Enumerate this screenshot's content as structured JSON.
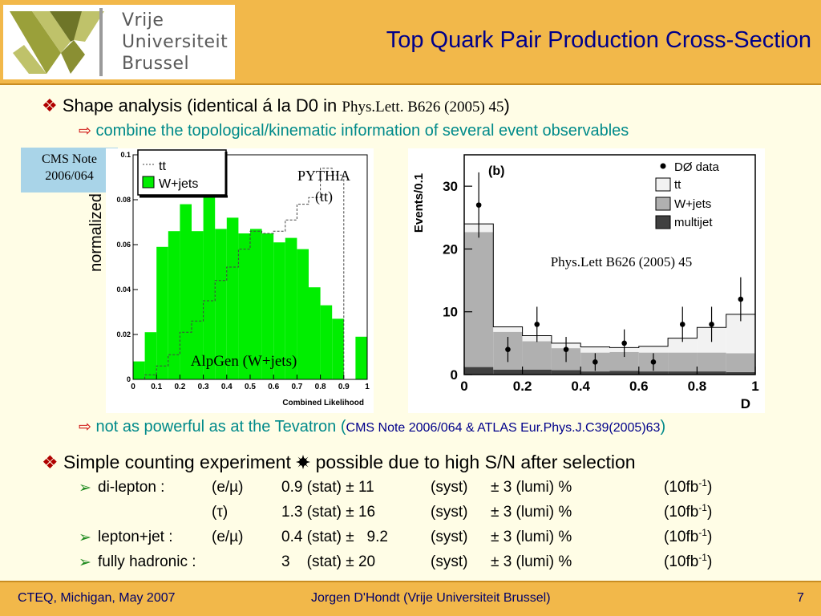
{
  "header": {
    "logo": {
      "line1": "Vrije",
      "line2": "Universiteit",
      "line3": "Brussel"
    },
    "title": "Top Quark Pair Production Cross-Section"
  },
  "bullets": {
    "shape": {
      "text": "Shape analysis (identical á la D0 in ",
      "ref": "Phys.Lett. B626 (2005) 45",
      "close": ")"
    },
    "combine": "combine the topological/kinematic information of several event observables",
    "not_powerful": {
      "text": "not as powerful as at the Tevatron (",
      "ref": "CMS Note 2006/064 & ATLAS Eur.Phys.J.C39(2005)63",
      "close": ")"
    },
    "counting": {
      "before": "Simple counting experiment ",
      "after": " possible due to high S/N after selection"
    }
  },
  "results": [
    {
      "channel": "di-lepton :",
      "lepton": "(e/µ)",
      "value": "0.9 (stat) ± 11",
      "syst": "(syst)",
      "lumi": "± 3 (lumi) %",
      "lumi_fb": "(10fb",
      "lumi_exp": "-1",
      "lumi_close": ")"
    },
    {
      "channel": "",
      "lepton": "(τ)",
      "value": "1.3 (stat) ± 16",
      "syst": "(syst)",
      "lumi": "± 3 (lumi) %",
      "lumi_fb": "(10fb",
      "lumi_exp": "-1",
      "lumi_close": ")"
    },
    {
      "channel": "lepton+jet :",
      "lepton": "(e/µ)",
      "value": "0.4 (stat) ±   9.2",
      "syst": "(syst)",
      "lumi": "± 3 (lumi) %",
      "lumi_fb": "(10fb",
      "lumi_exp": "-1",
      "lumi_close": ")"
    },
    {
      "channel": "fully hadronic :",
      "lepton": "",
      "value": "3    (stat) ± 20",
      "syst": "(syst)",
      "lumi": "± 3 (lumi) %",
      "lumi_fb": "(10fb",
      "lumi_exp": "-1",
      "lumi_close": ")"
    }
  ],
  "note_box": {
    "line1": "CMS Note",
    "line2": "2006/064"
  },
  "footer": {
    "left": "CTEQ, Michigan, May 2007",
    "center": "Jorgen D'Hondt  (Vrije Universiteit Brussel)",
    "page": "7"
  },
  "colors": {
    "header": "#f2b84a",
    "title": "#00008a",
    "teal": "#008a8a",
    "green": "#00ee00"
  },
  "chart_data": [
    {
      "type": "bar",
      "xlabel": "Combined Likelihood",
      "ylabel": "normalized",
      "xlim": [
        0,
        1
      ],
      "ylim": [
        0,
        0.1
      ],
      "xticks": [
        "0",
        "0.1",
        "0.2",
        "0.3",
        "0.4",
        "0.5",
        "0.6",
        "0.7",
        "0.8",
        "0.9",
        "1"
      ],
      "yticks": [
        "0",
        "0.02",
        "0.04",
        "0.06",
        "0.08",
        "0.1"
      ],
      "legend": {
        "ttbar": "tt",
        "wjets": "W+jets"
      },
      "annotations": {
        "pythia": "PYTHIA",
        "pythia_sub": "(tt)",
        "alpgen": "AlpGen (W+jets)"
      },
      "bin_edges": [
        0,
        0.05,
        0.1,
        0.15,
        0.2,
        0.25,
        0.3,
        0.35,
        0.4,
        0.45,
        0.5,
        0.55,
        0.6,
        0.65,
        0.7,
        0.75,
        0.8,
        0.85,
        0.9,
        0.95,
        1.0
      ],
      "series": [
        {
          "name": "W+jets",
          "style": "filled",
          "values": [
            0.008,
            0.021,
            0.059,
            0.066,
            0.078,
            0.066,
            0.082,
            0.067,
            0.072,
            0.065,
            0.067,
            0.065,
            0.061,
            0.063,
            0.058,
            0.041,
            0.033,
            0.027,
            0.0,
            0.019
          ]
        },
        {
          "name": "tt",
          "style": "dashed",
          "values": [
            0.0,
            0.002,
            0.006,
            0.011,
            0.021,
            0.026,
            0.035,
            0.044,
            0.05,
            0.058,
            0.066,
            0.065,
            0.066,
            0.071,
            0.078,
            0.081,
            0.094,
            0.091,
            0.0,
            0.0
          ]
        }
      ]
    },
    {
      "type": "bar",
      "label": "(b)",
      "xlabel": "D",
      "ylabel": "Events/0.1",
      "xlim": [
        0,
        1
      ],
      "ylim": [
        0,
        35
      ],
      "xticks": [
        "0",
        "0.2",
        "0.4",
        "0.6",
        "0.8",
        "1"
      ],
      "yticks": [
        "0",
        "10",
        "20",
        "30"
      ],
      "legend": {
        "data": "DØ data",
        "ttbar": "tt",
        "wjets": "W+jets",
        "multijet": "multijet"
      },
      "annotation": "Phys.Lett B626 (2005) 45",
      "bin_edges": [
        0,
        0.1,
        0.2,
        0.3,
        0.4,
        0.5,
        0.6,
        0.7,
        0.8,
        0.9,
        1.0
      ],
      "series": [
        {
          "name": "multijet",
          "values": [
            1.2,
            0.8,
            0.8,
            0.7,
            0.5,
            0.6,
            0.5,
            0.5,
            0.5,
            0.4
          ]
        },
        {
          "name": "W+jets",
          "values": [
            21.5,
            6.0,
            4.5,
            3.5,
            3.0,
            3.0,
            3.0,
            3.0,
            3.0,
            3.0
          ]
        },
        {
          "name": "tt",
          "values": [
            1.3,
            0.8,
            0.9,
            0.8,
            0.9,
            0.7,
            1.0,
            2.3,
            4.0,
            6.2
          ]
        }
      ],
      "data_points": {
        "name": "DØ data",
        "x": [
          0.05,
          0.15,
          0.25,
          0.35,
          0.45,
          0.55,
          0.65,
          0.75,
          0.85,
          0.95
        ],
        "y": [
          27,
          4,
          8,
          4,
          2,
          5,
          2,
          8,
          8,
          12
        ],
        "err": [
          5.2,
          2.0,
          2.8,
          2.0,
          1.4,
          2.2,
          1.4,
          2.8,
          2.8,
          3.5
        ]
      }
    }
  ]
}
